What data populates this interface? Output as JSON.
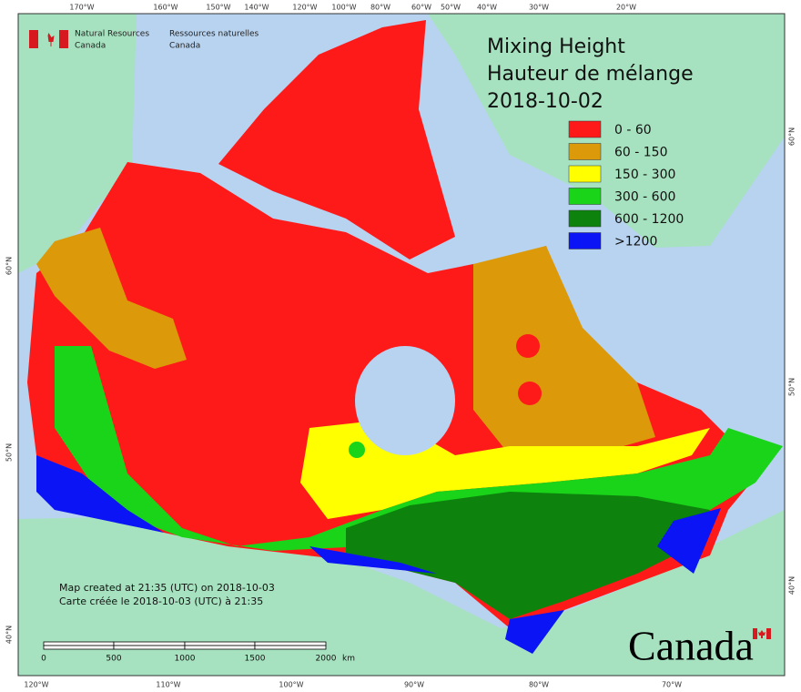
{
  "title": [
    "Mixing Height",
    "Hauteur de mélange",
    "2018-10-02"
  ],
  "agency": {
    "en": [
      "Natural Resources",
      "Canada"
    ],
    "fr": [
      "Ressources naturelles",
      "Canada"
    ]
  },
  "legend": [
    {
      "label": "0 - 60",
      "color": "#ff1a1a"
    },
    {
      "label": "60 - 150",
      "color": "#dc9a0a"
    },
    {
      "label": "150 - 300",
      "color": "#ffff00"
    },
    {
      "label": "300 - 600",
      "color": "#19d419"
    },
    {
      "label": "600 - 1200",
      "color": "#0d830d"
    },
    {
      "label": ">1200",
      "color": "#0a14f5"
    }
  ],
  "notes": [
    "Map created at 21:35 (UTC) on 2018-10-03",
    "Carte créée le 2018-10-03 (UTC) à 21:35"
  ],
  "scale": {
    "ticks": [
      "0",
      "500",
      "1000",
      "1500",
      "2000"
    ],
    "unit": "km"
  },
  "top_labels": [
    "170°W",
    "160°W",
    "150°W",
    "140°W",
    "120°W",
    "100°W",
    "80°W",
    "60°W",
    "50°W",
    "40°W",
    "30°W",
    "20°W"
  ],
  "bottom_labels": [
    "120°W",
    "110°W",
    "100°W",
    "90°W",
    "80°W",
    "70°W"
  ],
  "left_labels": [
    "60°N",
    "50°N",
    "40°N"
  ],
  "right_labels": [
    "60°N",
    "50°N",
    "40°N"
  ],
  "wordmark": "Canada"
}
